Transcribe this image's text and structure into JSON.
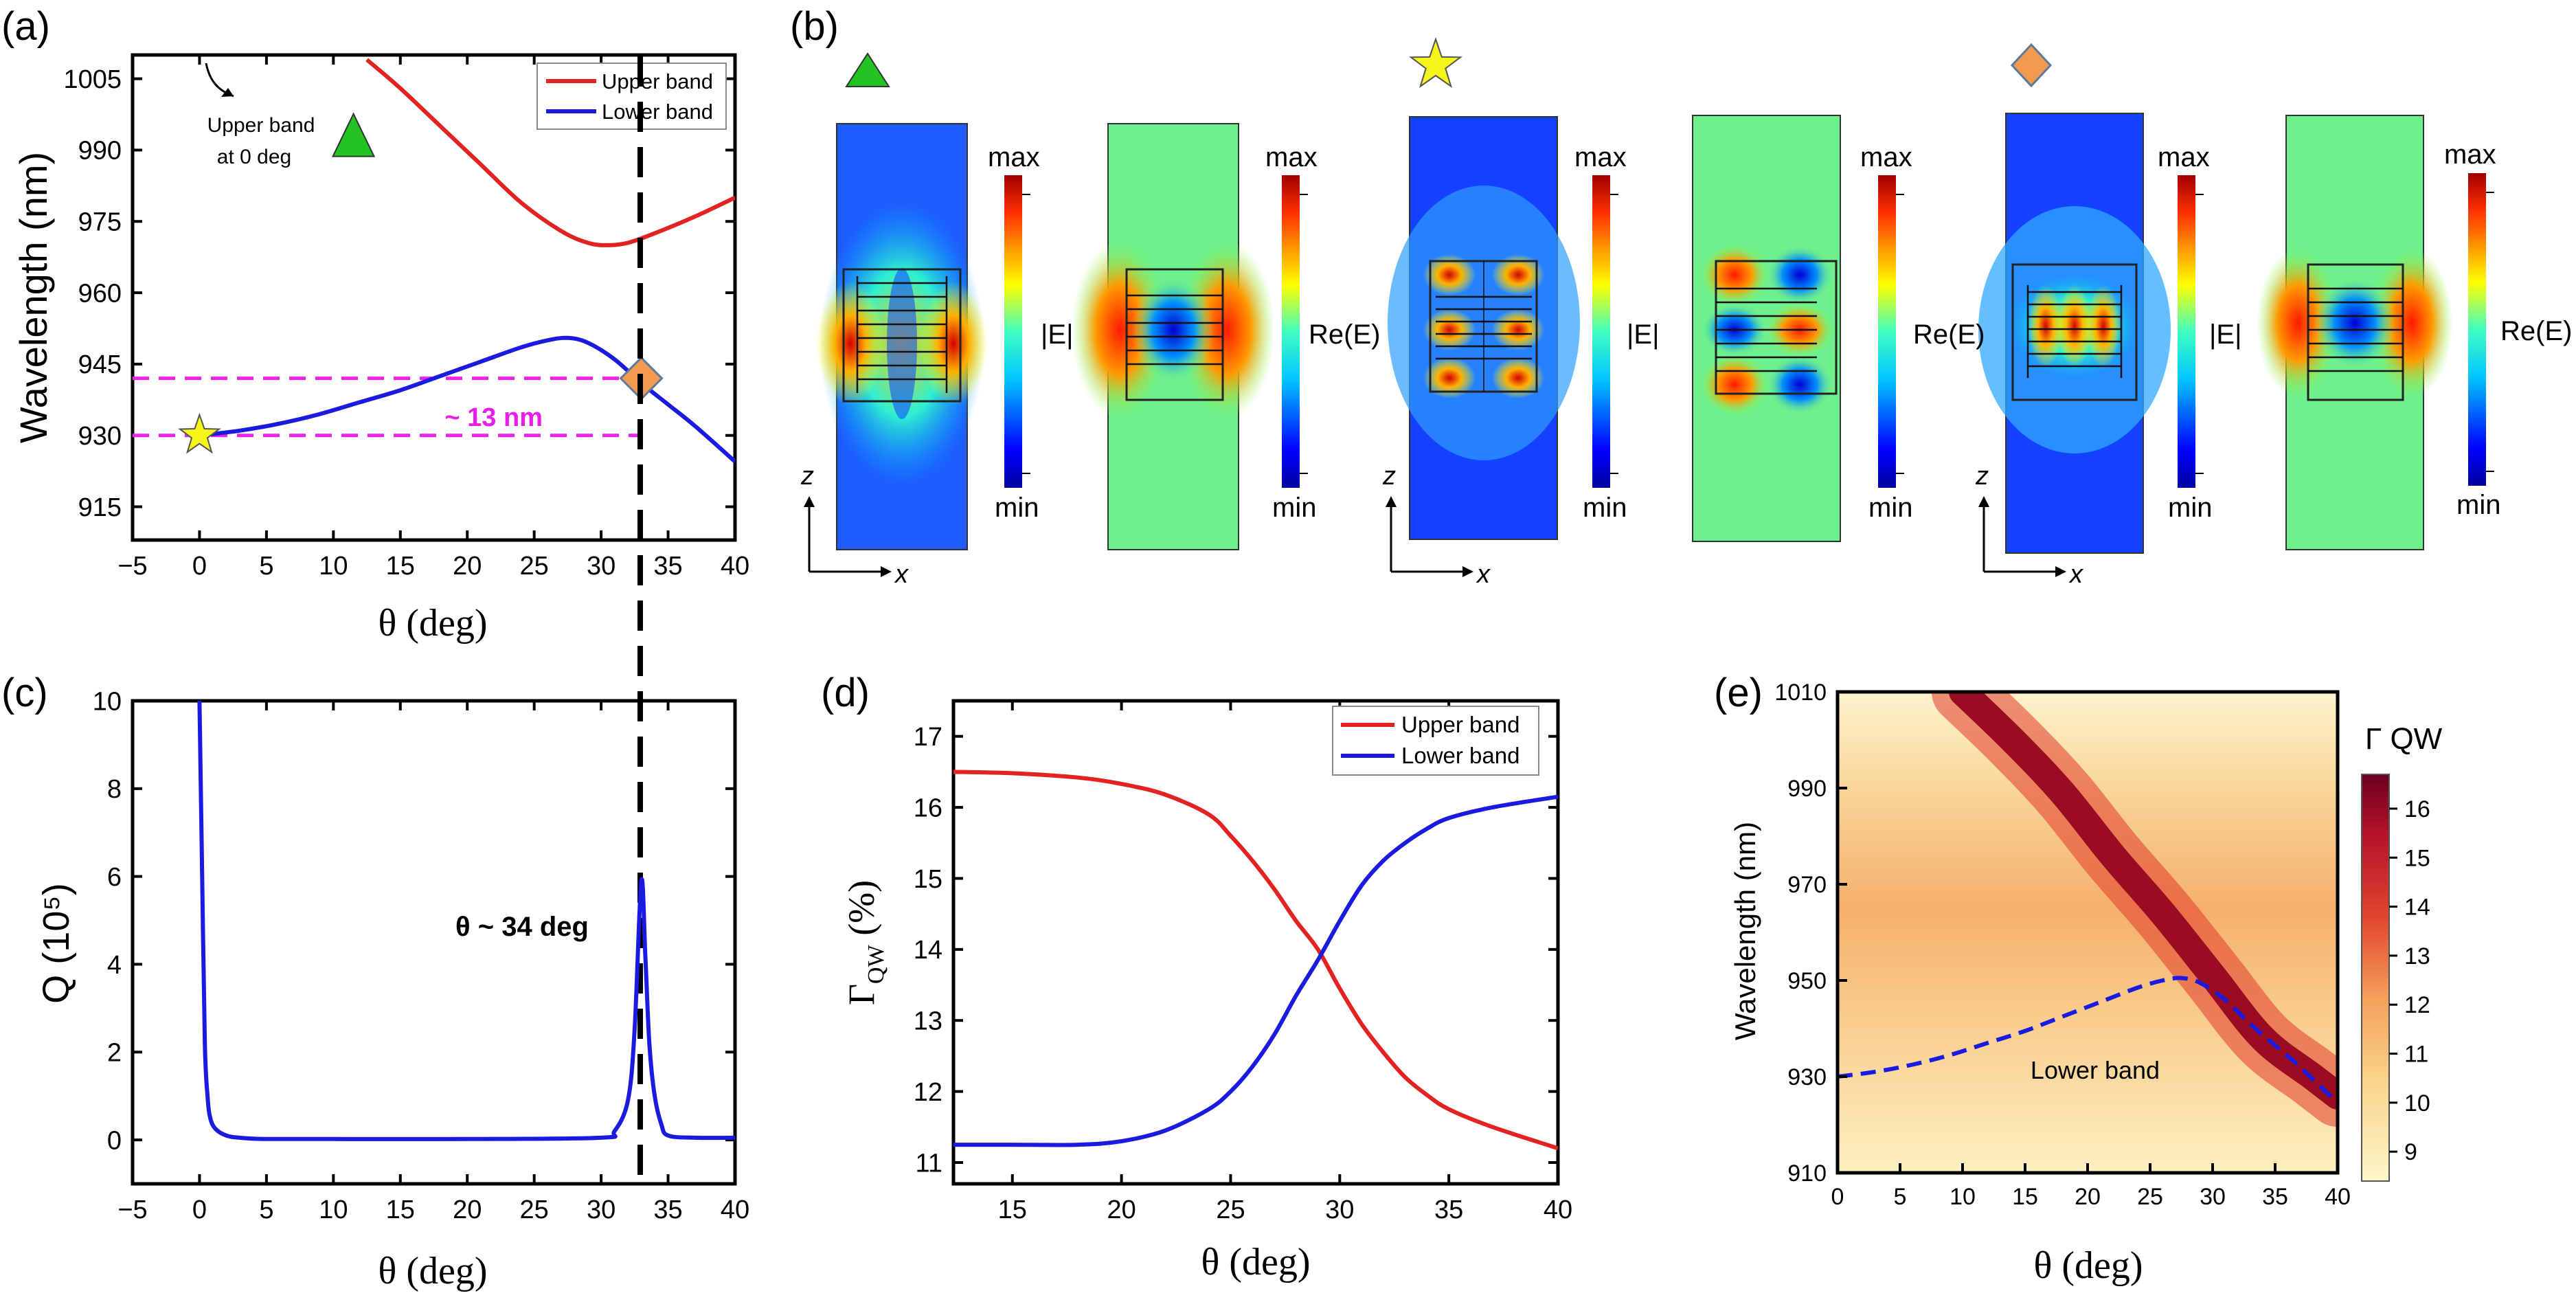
{
  "panels": {
    "a": "(a)",
    "b": "(b)",
    "c": "(c)",
    "d": "(d)",
    "e": "(e)"
  },
  "chart_data": [
    {
      "id": "a",
      "type": "line",
      "xlabel": "θ (deg)",
      "ylabel": "Wavelength (nm)",
      "xlim": [
        -5,
        40
      ],
      "ylim": [
        908,
        1010
      ],
      "xticks": [
        "-5",
        "0",
        "5",
        "10",
        "15",
        "20",
        "25",
        "30",
        "35",
        "40"
      ],
      "xtick_values": [
        -5,
        0,
        5,
        10,
        15,
        20,
        25,
        30,
        35,
        40
      ],
      "yticks": [
        "915",
        "930",
        "945",
        "960",
        "975",
        "990",
        "1005"
      ],
      "ytick_values": [
        915,
        930,
        945,
        960,
        975,
        990,
        1005
      ],
      "legend": "top-right",
      "series": [
        {
          "name": "Upper band",
          "color": "#e32222",
          "x": [
            12.5,
            15,
            18,
            21,
            24,
            27,
            29,
            30.5,
            32,
            34,
            37,
            40
          ],
          "y": [
            1009,
            1003,
            995,
            987,
            979,
            973,
            970.5,
            970,
            970.5,
            972.5,
            976,
            980
          ]
        },
        {
          "name": "Lower band",
          "color": "#1a1ae0",
          "x": [
            0,
            3,
            6,
            9,
            12,
            15,
            18,
            21,
            24,
            26,
            27.5,
            29,
            31,
            33,
            35,
            37,
            40
          ],
          "y": [
            930,
            931,
            932.5,
            934.5,
            937,
            939.5,
            942.5,
            945.5,
            948.5,
            950,
            950.5,
            949.5,
            946,
            941,
            936.5,
            932,
            924.5
          ]
        }
      ],
      "dashed_lines": {
        "horizontal_nm": [
          930,
          942
        ],
        "vertical_deg": 33
      },
      "markers": [
        {
          "shape": "star",
          "color": "#f5f51a",
          "x": 0,
          "y": 930
        },
        {
          "shape": "diamond",
          "color": "#f39a4f",
          "x": 33,
          "y": 942
        },
        {
          "shape": "triangle",
          "color": "#22c322",
          "x": 11.5,
          "y": 993
        }
      ],
      "annotations": {
        "delta": "~ 13 nm",
        "upper_note_1": "Upper band",
        "upper_note_2": "at 0 deg"
      }
    },
    {
      "id": "c",
      "type": "line",
      "xlabel": "θ (deg)",
      "ylabel": "Q (10⁵)",
      "xlim": [
        -5,
        40
      ],
      "ylim": [
        -1,
        10
      ],
      "xticks": [
        "-5",
        "0",
        "5",
        "10",
        "15",
        "20",
        "25",
        "30",
        "35",
        "40"
      ],
      "xtick_values": [
        -5,
        0,
        5,
        10,
        15,
        20,
        25,
        30,
        35,
        40
      ],
      "yticks": [
        "0",
        "2",
        "4",
        "6",
        "8",
        "10"
      ],
      "ytick_values": [
        0,
        2,
        4,
        6,
        8,
        10
      ],
      "series": [
        {
          "name": "Q",
          "color": "#1a1ae0",
          "x": [
            0,
            0.2,
            0.4,
            0.6,
            0.8,
            1.2,
            2,
            3,
            5,
            10,
            20,
            30,
            31,
            32,
            32.5,
            33,
            33.3,
            33.6,
            34,
            34.5,
            35,
            37,
            40
          ],
          "y": [
            10,
            6,
            2.2,
            1.0,
            0.5,
            0.25,
            0.1,
            0.05,
            0.02,
            0.02,
            0.02,
            0.05,
            0.2,
            0.9,
            2.5,
            5.9,
            4.2,
            2.2,
            1.0,
            0.35,
            0.1,
            0.05,
            0.05
          ]
        }
      ],
      "dashed_lines": {
        "vertical_deg": 33
      },
      "annotations": {
        "peak_label": "θ ~ 34 deg"
      }
    },
    {
      "id": "d",
      "type": "line",
      "xlabel": "θ (deg)",
      "ylabel": "Γ_QW (%)",
      "xlim": [
        12.3,
        40
      ],
      "ylim": [
        10.7,
        17.5
      ],
      "xticks": [
        "15",
        "20",
        "25",
        "30",
        "35",
        "40"
      ],
      "xtick_values": [
        15,
        20,
        25,
        30,
        35,
        40
      ],
      "yticks": [
        "11",
        "12",
        "13",
        "14",
        "15",
        "16",
        "17"
      ],
      "ytick_values": [
        11,
        12,
        13,
        14,
        15,
        16,
        17
      ],
      "legend": "top-right",
      "series": [
        {
          "name": "Upper band",
          "color": "#e32222",
          "x": [
            12.3,
            15,
            18,
            20,
            22,
            24,
            25,
            26,
            27,
            28,
            29,
            30,
            31,
            32,
            33,
            34,
            35,
            37,
            40
          ],
          "y": [
            16.5,
            16.48,
            16.42,
            16.33,
            16.18,
            15.9,
            15.6,
            15.25,
            14.85,
            14.4,
            14.0,
            13.45,
            12.95,
            12.55,
            12.2,
            11.95,
            11.75,
            11.5,
            11.2
          ]
        },
        {
          "name": "Lower band",
          "color": "#1a1ae0",
          "x": [
            12.3,
            15,
            18,
            20,
            22,
            24,
            25,
            26,
            27,
            28,
            29,
            30,
            31,
            32,
            33,
            34,
            35,
            37,
            40
          ],
          "y": [
            11.25,
            11.25,
            11.25,
            11.3,
            11.45,
            11.75,
            12.0,
            12.35,
            12.8,
            13.35,
            13.85,
            14.4,
            14.9,
            15.25,
            15.5,
            15.7,
            15.85,
            16.0,
            16.15
          ]
        }
      ]
    },
    {
      "id": "e",
      "type": "heatmap",
      "xlabel": "θ (deg)",
      "ylabel": "Wavelength (nm)",
      "xlim": [
        0,
        40
      ],
      "ylim": [
        910,
        1010
      ],
      "xticks": [
        "0",
        "5",
        "10",
        "15",
        "20",
        "25",
        "30",
        "35",
        "40"
      ],
      "xtick_values": [
        0,
        5,
        10,
        15,
        20,
        25,
        30,
        35,
        40
      ],
      "yticks": [
        "910",
        "930",
        "950",
        "970",
        "990",
        "1010"
      ],
      "ytick_values": [
        910,
        930,
        950,
        970,
        990,
        1010
      ],
      "colorbar": {
        "label": "Γ QW",
        "min": 8.4,
        "max": 16.7,
        "ticks": [
          "9",
          "10",
          "11",
          "12",
          "13",
          "14",
          "15",
          "16"
        ],
        "tick_values": [
          9,
          10,
          11,
          12,
          13,
          14,
          15,
          16
        ]
      },
      "ridge": {
        "x": [
          10,
          14,
          18,
          22,
          26,
          30,
          34,
          38,
          40
        ],
        "y": [
          1010,
          1000,
          989,
          976,
          964,
          951,
          938,
          930,
          926
        ]
      },
      "series": [
        {
          "name": "Lower band",
          "color": "#1a1ae0",
          "style": "dashed",
          "x": [
            0,
            3,
            6,
            9,
            12,
            15,
            18,
            21,
            24,
            26,
            27.5,
            29,
            31,
            33,
            35,
            37,
            40
          ],
          "y": [
            930,
            931,
            932.5,
            934.5,
            937,
            939.5,
            942.5,
            945.5,
            948.5,
            950,
            950.5,
            949.5,
            946,
            941,
            936.5,
            932,
            924.5
          ]
        }
      ],
      "annotations": {
        "band_label": "Lower band"
      }
    }
  ],
  "field_maps": {
    "markers": [
      {
        "shape": "triangle",
        "color": "#22c322"
      },
      {
        "shape": "star",
        "color": "#f5f51a"
      },
      {
        "shape": "diamond",
        "color": "#f39a4f"
      }
    ],
    "maps": [
      {
        "mode": "|E|",
        "group": "triangle",
        "colorbar_max": "max",
        "colorbar_min": "min",
        "colorbar_label": "|E|"
      },
      {
        "mode": "Re(E)",
        "group": "triangle",
        "colorbar_max": "max",
        "colorbar_min": "min",
        "colorbar_label": "Re(E)"
      },
      {
        "mode": "|E|",
        "group": "star",
        "colorbar_max": "max",
        "colorbar_min": "min",
        "colorbar_label": "|E|"
      },
      {
        "mode": "Re(E)",
        "group": "star",
        "colorbar_max": "max",
        "colorbar_min": "min",
        "colorbar_label": "Re(E)"
      },
      {
        "mode": "|E|",
        "group": "diamond",
        "colorbar_max": "max",
        "colorbar_min": "min",
        "colorbar_label": "|E|"
      },
      {
        "mode": "Re(E)",
        "group": "diamond",
        "colorbar_max": "max",
        "colorbar_min": "min",
        "colorbar_label": "Re(E)"
      }
    ],
    "axes_labels": {
      "z": "z",
      "x": "x"
    }
  }
}
